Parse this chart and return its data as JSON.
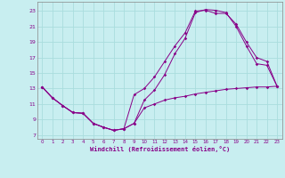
{
  "background_color": "#c8eef0",
  "line_color": "#880088",
  "grid_color": "#aadddd",
  "xlabel": "Windchill (Refroidissement éolien,°C)",
  "ylabel_ticks": [
    7,
    9,
    11,
    13,
    15,
    17,
    19,
    21,
    23
  ],
  "xlabel_ticks": [
    0,
    1,
    2,
    3,
    4,
    5,
    6,
    7,
    8,
    9,
    10,
    11,
    12,
    13,
    14,
    15,
    16,
    17,
    18,
    19,
    20,
    21,
    22,
    23
  ],
  "xlim": [
    -0.5,
    23.5
  ],
  "ylim": [
    6.5,
    24.2
  ],
  "line1_x": [
    0,
    1,
    2,
    3,
    4,
    5,
    6,
    7,
    8,
    9,
    10,
    11,
    12,
    13,
    14,
    15,
    16,
    17,
    18,
    19,
    20,
    21,
    22,
    23
  ],
  "line1_y": [
    13.2,
    11.8,
    10.8,
    9.9,
    9.8,
    8.5,
    8.0,
    7.6,
    7.8,
    8.5,
    10.5,
    11.0,
    11.5,
    11.8,
    12.0,
    12.3,
    12.5,
    12.7,
    12.9,
    13.0,
    13.1,
    13.2,
    13.2,
    13.3
  ],
  "line2_x": [
    0,
    1,
    2,
    3,
    4,
    5,
    6,
    7,
    8,
    9,
    10,
    11,
    12,
    13,
    14,
    15,
    16,
    17,
    18,
    19,
    20,
    21,
    22,
    23
  ],
  "line2_y": [
    13.2,
    11.8,
    10.8,
    9.9,
    9.8,
    8.5,
    8.0,
    7.6,
    7.8,
    8.5,
    11.5,
    12.8,
    14.8,
    17.5,
    19.5,
    22.8,
    23.2,
    23.1,
    22.8,
    21.0,
    18.5,
    16.2,
    16.0,
    13.3
  ],
  "line3_x": [
    0,
    1,
    2,
    3,
    4,
    5,
    6,
    7,
    8,
    9,
    10,
    11,
    12,
    13,
    14,
    15,
    16,
    17,
    18,
    19,
    20,
    21,
    22,
    23
  ],
  "line3_y": [
    13.2,
    11.8,
    10.8,
    9.9,
    9.8,
    8.5,
    8.0,
    7.6,
    7.8,
    12.2,
    13.0,
    14.5,
    16.5,
    18.5,
    20.2,
    23.0,
    23.1,
    22.7,
    22.7,
    21.3,
    19.0,
    17.0,
    16.5,
    13.3
  ]
}
